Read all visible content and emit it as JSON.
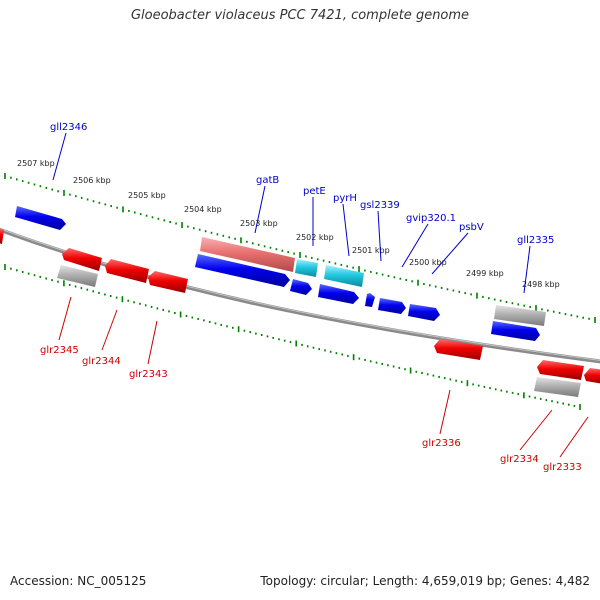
{
  "title": "Gloeobacter violaceus PCC 7421, complete genome",
  "footer": {
    "accession": "Accession: NC_005125",
    "topology": "Topology: circular; Length: 4,659,019 bp; Genes: 4,482"
  },
  "colors": {
    "forward_label": "#0000cc",
    "reverse_label": "#cc0000",
    "forward_gene": "#0000ee",
    "reverse_gene": "#ee0000",
    "grey_gene": "#b0b0b0",
    "pink_gene": "#e87070",
    "cyan_gene": "#22c8e0",
    "tick": "#008000",
    "backbone": "#888888"
  },
  "kbp_labels": [
    "2507 kbp",
    "2506 kbp",
    "2505 kbp",
    "2504 kbp",
    "2503 kbp",
    "2502 kbp",
    "2501 kbp",
    "2500 kbp",
    "2499 kbp",
    "2498 kbp"
  ],
  "forward_labels": [
    "gll2346",
    "gatB",
    "petE",
    "pyrH",
    "gsl2339",
    "gvip320.1",
    "psbV",
    "gll2335"
  ],
  "reverse_labels": [
    "glr2345",
    "glr2344",
    "glr2343",
    "glr2336",
    "glr2334",
    "glr2333"
  ]
}
